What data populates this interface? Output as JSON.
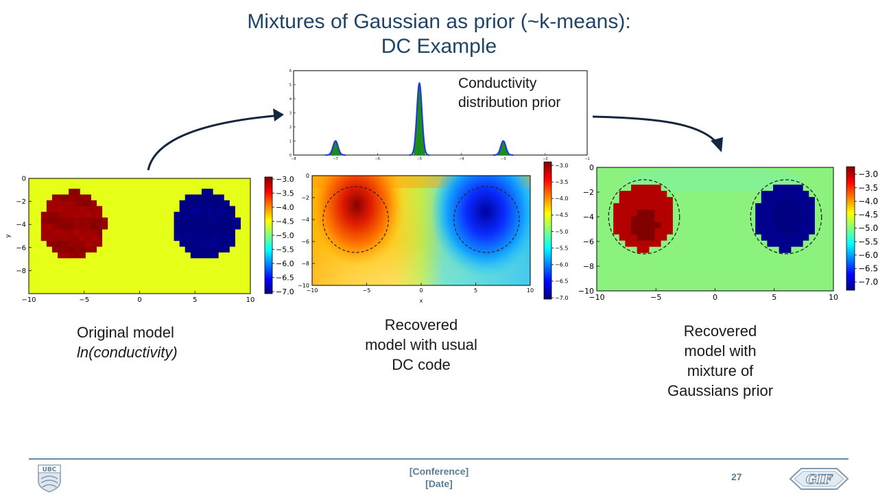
{
  "slide": {
    "title_line1": "Mixtures of Gaussian as prior (~k-means):",
    "title_line2": "DC Example",
    "prior_label_line1": "Conductivity",
    "prior_label_line2": "distribution prior",
    "caption_left_line1": "Original model",
    "caption_left_line2": "ln(conductivity)",
    "caption_mid_line1": "Recovered",
    "caption_mid_line2": "model with usual",
    "caption_mid_line3": "DC code",
    "caption_right_line1": "Recovered",
    "caption_right_line2": "model with",
    "caption_right_line3": "mixture of",
    "caption_right_line4": "Gaussians prior"
  },
  "footer": {
    "conference": "[Conference]",
    "date": "[Date]",
    "page_number": "27",
    "left_logo_text": "UBC",
    "right_logo_text": "GIF"
  },
  "colorbar": {
    "ticks_large": [
      "−3.0",
      "−3.5",
      "−4.0",
      "−4.5",
      "−5.0",
      "−5.5",
      "−6.0",
      "−6.5",
      "−7.0"
    ],
    "ticks_small": [
      "−3.0",
      "−3.5",
      "−4.0",
      "−4.5",
      "−5.0",
      "−5.5",
      "−6.0",
      "−6.5",
      "−7.0"
    ],
    "range": [
      -7.0,
      -3.0
    ]
  },
  "chart_data": [
    {
      "type": "line",
      "chart": "prior-histogram",
      "x": [
        -8,
        -7,
        -6,
        -5,
        -4,
        -3,
        -2,
        -1
      ],
      "x_tick_labels": [
        "−8",
        "−7",
        "−6",
        "−5",
        "−4",
        "−3",
        "−2",
        "−1"
      ],
      "y_tick_labels": [
        "0",
        "1",
        "2",
        "3",
        "4",
        "5",
        "6"
      ],
      "xlim": [
        -8,
        -1
      ],
      "ylim": [
        0,
        6
      ],
      "peaks": [
        {
          "mean": -7.0,
          "height": 1.0
        },
        {
          "mean": -5.0,
          "height": 5.1
        },
        {
          "mean": -3.0,
          "height": 1.0
        }
      ]
    },
    {
      "type": "heatmap",
      "chart": "original-model",
      "x_tick_labels": [
        "−10",
        "−5",
        "0",
        "5",
        "10"
      ],
      "y_tick_labels": [
        "0",
        "−2",
        "−4",
        "−6",
        "−8"
      ],
      "ylabel": "y",
      "xlim": [
        -10,
        10
      ],
      "ylim": [
        -10,
        0
      ],
      "background_value": -4.6,
      "blocks": [
        {
          "cx": -6,
          "cy": -4,
          "r": 2.9,
          "value": -3.1
        },
        {
          "cx": 6,
          "cy": -4,
          "r": 2.9,
          "value": -7.0
        }
      ]
    },
    {
      "type": "heatmap",
      "chart": "recovered-usual",
      "x_tick_labels": [
        "−10",
        "−5",
        "0",
        "5",
        "10"
      ],
      "y_tick_labels": [
        "0",
        "−2",
        "−4",
        "−6",
        "−8",
        "−10"
      ],
      "xlabel": "x",
      "xlim": [
        -10,
        10
      ],
      "ylim": [
        -10,
        0
      ],
      "outlines": [
        {
          "cx": -6,
          "cy": -4,
          "r": 3
        },
        {
          "cx": 6,
          "cy": -4,
          "r": 3
        }
      ]
    },
    {
      "type": "heatmap",
      "chart": "recovered-mog",
      "x_tick_labels": [
        "−10",
        "−5",
        "0",
        "5",
        "10"
      ],
      "y_tick_labels": [
        "0",
        "−2",
        "−4",
        "−6",
        "−8",
        "−10"
      ],
      "xlim": [
        -10,
        10
      ],
      "ylim": [
        -10,
        0
      ],
      "outlines": [
        {
          "cx": -6,
          "cy": -4,
          "r": 3
        },
        {
          "cx": 6,
          "cy": -4,
          "r": 3
        }
      ]
    }
  ]
}
